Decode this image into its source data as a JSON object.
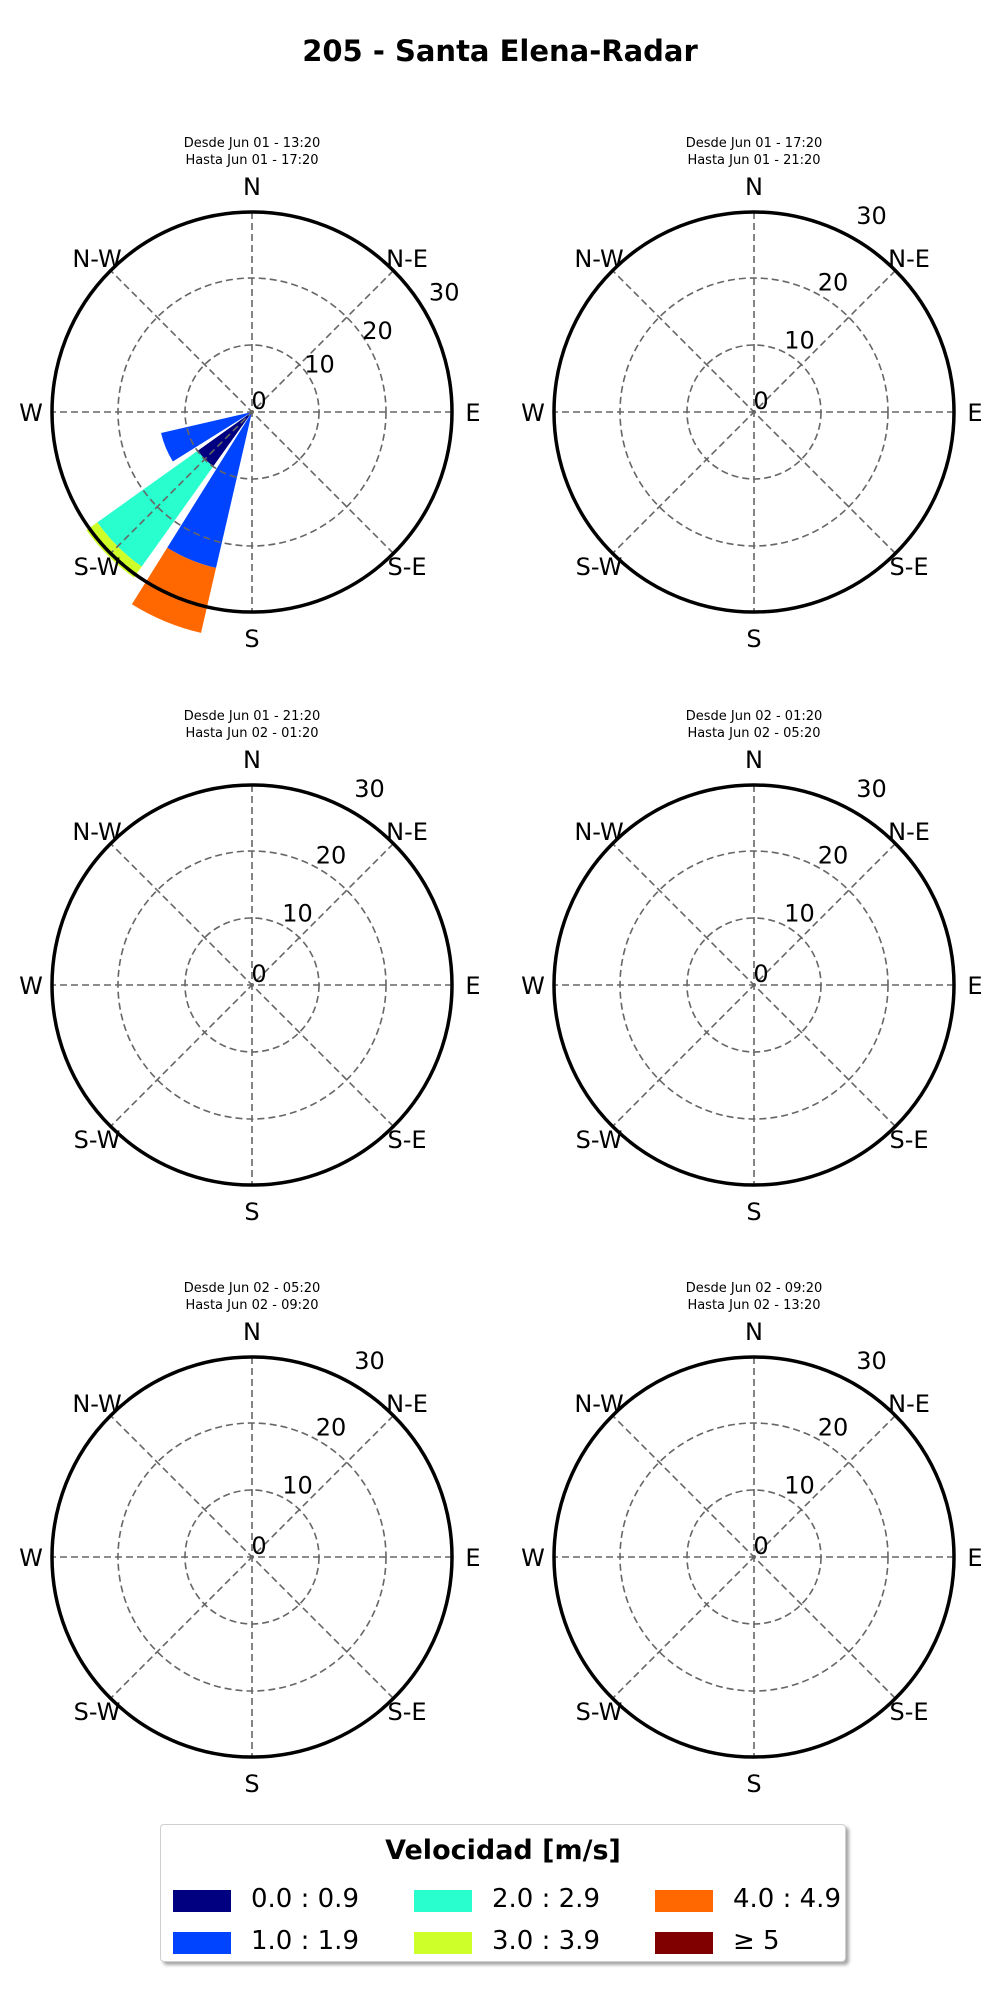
{
  "title": "205 - Santa Elena-Radar",
  "directions": [
    "N",
    "N-E",
    "E",
    "S-E",
    "S",
    "S-W",
    "W",
    "N-W"
  ],
  "chart_data": [
    {
      "type": "windrose",
      "subtitle_line1": "Desde Jun 01 - 13:20",
      "subtitle_line2": "Hasta Jun 01 - 17:20",
      "radial_ticks": [
        "0",
        "10",
        "20",
        "30"
      ],
      "rmax": 30,
      "grid": true,
      "bars": [
        {
          "direction_deg": 202.5,
          "r0": 0,
          "r1": 24,
          "bin": "1.0 : 1.9"
        },
        {
          "direction_deg": 202.5,
          "r0": 24,
          "r1": 34,
          "bin": "4.0 : 4.9"
        },
        {
          "direction_deg": 225,
          "r0": 0,
          "r1": 10,
          "bin": "0.0 : 0.9"
        },
        {
          "direction_deg": 225,
          "r0": 10,
          "r1": 28.5,
          "bin": "2.0 : 2.9"
        },
        {
          "direction_deg": 225,
          "r0": 28.5,
          "r1": 30.5,
          "bin": "3.0 : 3.9"
        },
        {
          "direction_deg": 247.5,
          "r0": 0,
          "r1": 14,
          "bin": "1.0 : 1.9"
        }
      ]
    },
    {
      "type": "windrose",
      "subtitle_line1": "Desde Jun 01 - 17:20",
      "subtitle_line2": "Hasta Jun 01 - 21:20",
      "radial_ticks": [
        "0",
        "10",
        "20",
        "30"
      ],
      "rmax": 30,
      "grid": true,
      "bars": []
    },
    {
      "type": "windrose",
      "subtitle_line1": "Desde Jun 01 - 21:20",
      "subtitle_line2": "Hasta Jun 02 - 01:20",
      "radial_ticks": [
        "0",
        "10",
        "20",
        "30"
      ],
      "rmax": 30,
      "grid": true,
      "bars": []
    },
    {
      "type": "windrose",
      "subtitle_line1": "Desde Jun 02 - 01:20",
      "subtitle_line2": "Hasta Jun 02 - 05:20",
      "radial_ticks": [
        "0",
        "10",
        "20",
        "30"
      ],
      "rmax": 30,
      "grid": true,
      "bars": []
    },
    {
      "type": "windrose",
      "subtitle_line1": "Desde Jun 02 - 05:20",
      "subtitle_line2": "Hasta Jun 02 - 09:20",
      "radial_ticks": [
        "0",
        "10",
        "20",
        "30"
      ],
      "rmax": 30,
      "grid": true,
      "bars": []
    },
    {
      "type": "windrose",
      "subtitle_line1": "Desde Jun 02 - 09:20",
      "subtitle_line2": "Hasta Jun 02 - 13:20",
      "radial_ticks": [
        "0",
        "10",
        "20",
        "30"
      ],
      "rmax": 30,
      "grid": true,
      "bars": []
    }
  ],
  "legend": {
    "title": "Velocidad [m/s]",
    "placement": "bottom-center",
    "items": [
      {
        "label": "0.0 : 0.9",
        "color": "#000080"
      },
      {
        "label": "1.0 : 1.9",
        "color": "#0044ff"
      },
      {
        "label": "2.0 : 2.9",
        "color": "#29ffce"
      },
      {
        "label": "3.0 : 3.9",
        "color": "#ceff29"
      },
      {
        "label": "4.0 : 4.9",
        "color": "#ff6800"
      },
      {
        "label": "≥  5",
        "color": "#800000"
      }
    ]
  }
}
